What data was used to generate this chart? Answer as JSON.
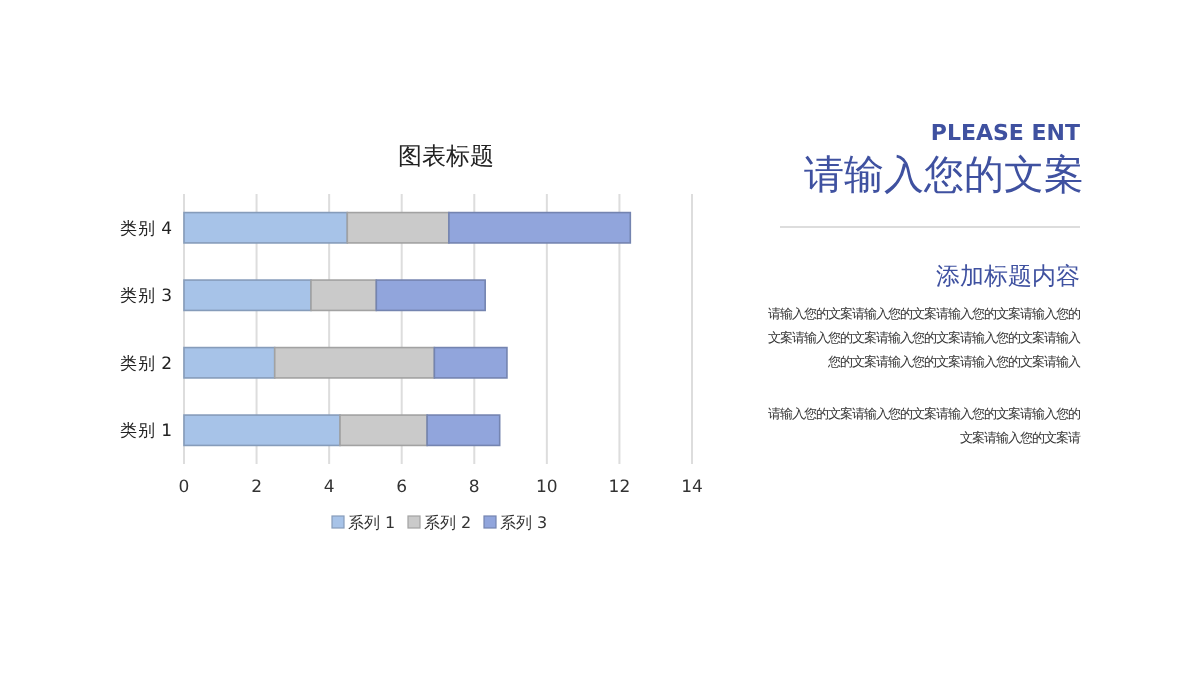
{
  "chart_data": [
    {
      "type": "bar",
      "orientation": "horizontal",
      "stacked": true,
      "title": "图表标题",
      "categories": [
        "类别 4",
        "类别 3",
        "类别 2",
        "类别 1"
      ],
      "series": [
        {
          "name": "系列 1",
          "color": "#a7c3e8",
          "values": [
            4.5,
            3.5,
            2.5,
            4.3
          ]
        },
        {
          "name": "系列 2",
          "color": "#cacaca",
          "values": [
            2.8,
            1.8,
            4.4,
            2.4
          ]
        },
        {
          "name": "系列 3",
          "color": "#91a5dc",
          "values": [
            5,
            3,
            2,
            2
          ]
        }
      ],
      "xlim": [
        0,
        14
      ],
      "xticks": [
        0,
        2,
        4,
        6,
        8,
        10,
        12,
        14
      ],
      "grid": "x",
      "legend": "bottom"
    },
    {
      "type": "other",
      "subtitle": "PLEASE ENT",
      "title": "请输入您的文案",
      "annotations": [
        "添加标题内容",
        "请输入您的文案请输入您的文案请输入您的文案请输入您的文案请输入您的文案请输入您的文案请输入您的文案请输入您的文案请输入您的文案请输入您的文案请输入",
        "请输入您的文案请输入您的文案请输入您的文案请输入您的文案请输入您的文案请"
      ]
    }
  ]
}
